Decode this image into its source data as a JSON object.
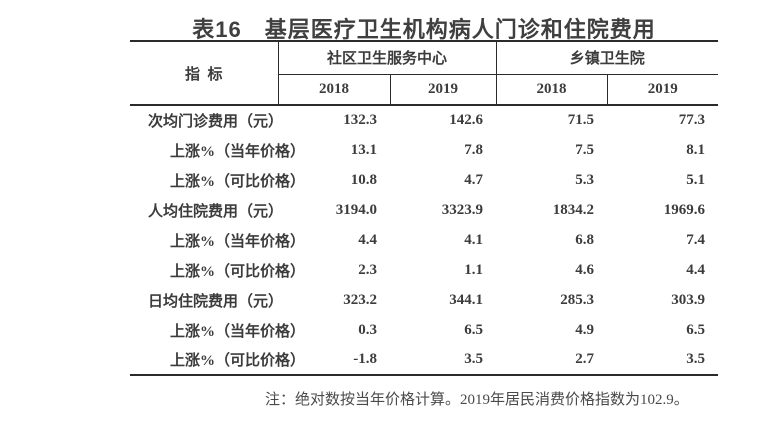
{
  "title": "表16　基层医疗卫生机构病人门诊和住院费用",
  "table": {
    "indicator_header": "指  标",
    "groups": [
      {
        "label": "社区卫生服务中心",
        "years": [
          "2018",
          "2019"
        ]
      },
      {
        "label": "乡镇卫生院",
        "years": [
          "2018",
          "2019"
        ]
      }
    ],
    "rows": [
      {
        "indicator": "次均门诊费用（元）",
        "indent": false,
        "values": [
          "132.3",
          "142.6",
          "71.5",
          "77.3"
        ]
      },
      {
        "indicator": "上涨%（当年价格）",
        "indent": true,
        "values": [
          "13.1",
          "7.8",
          "7.5",
          "8.1"
        ]
      },
      {
        "indicator": "上涨%（可比价格）",
        "indent": true,
        "values": [
          "10.8",
          "4.7",
          "5.3",
          "5.1"
        ]
      },
      {
        "indicator": "人均住院费用（元）",
        "indent": false,
        "values": [
          "3194.0",
          "3323.9",
          "1834.2",
          "1969.6"
        ]
      },
      {
        "indicator": "上涨%（当年价格）",
        "indent": true,
        "values": [
          "4.4",
          "4.1",
          "6.8",
          "7.4"
        ]
      },
      {
        "indicator": "上涨%（可比价格）",
        "indent": true,
        "values": [
          "2.3",
          "1.1",
          "4.6",
          "4.4"
        ]
      },
      {
        "indicator": "日均住院费用（元）",
        "indent": false,
        "values": [
          "323.2",
          "344.1",
          "285.3",
          "303.9"
        ]
      },
      {
        "indicator": "上涨%（当年价格）",
        "indent": true,
        "values": [
          "0.3",
          "6.5",
          "4.9",
          "6.5"
        ]
      },
      {
        "indicator": "上涨%（可比价格）",
        "indent": true,
        "values": [
          "-1.8",
          "3.5",
          "2.7",
          "3.5"
        ]
      }
    ]
  },
  "note": "注：绝对数按当年价格计算。2019年居民消费价格指数为102.9。",
  "colors": {
    "background": "#ffffff",
    "text": "#3c3c3c",
    "border": "#2b2b2b"
  }
}
